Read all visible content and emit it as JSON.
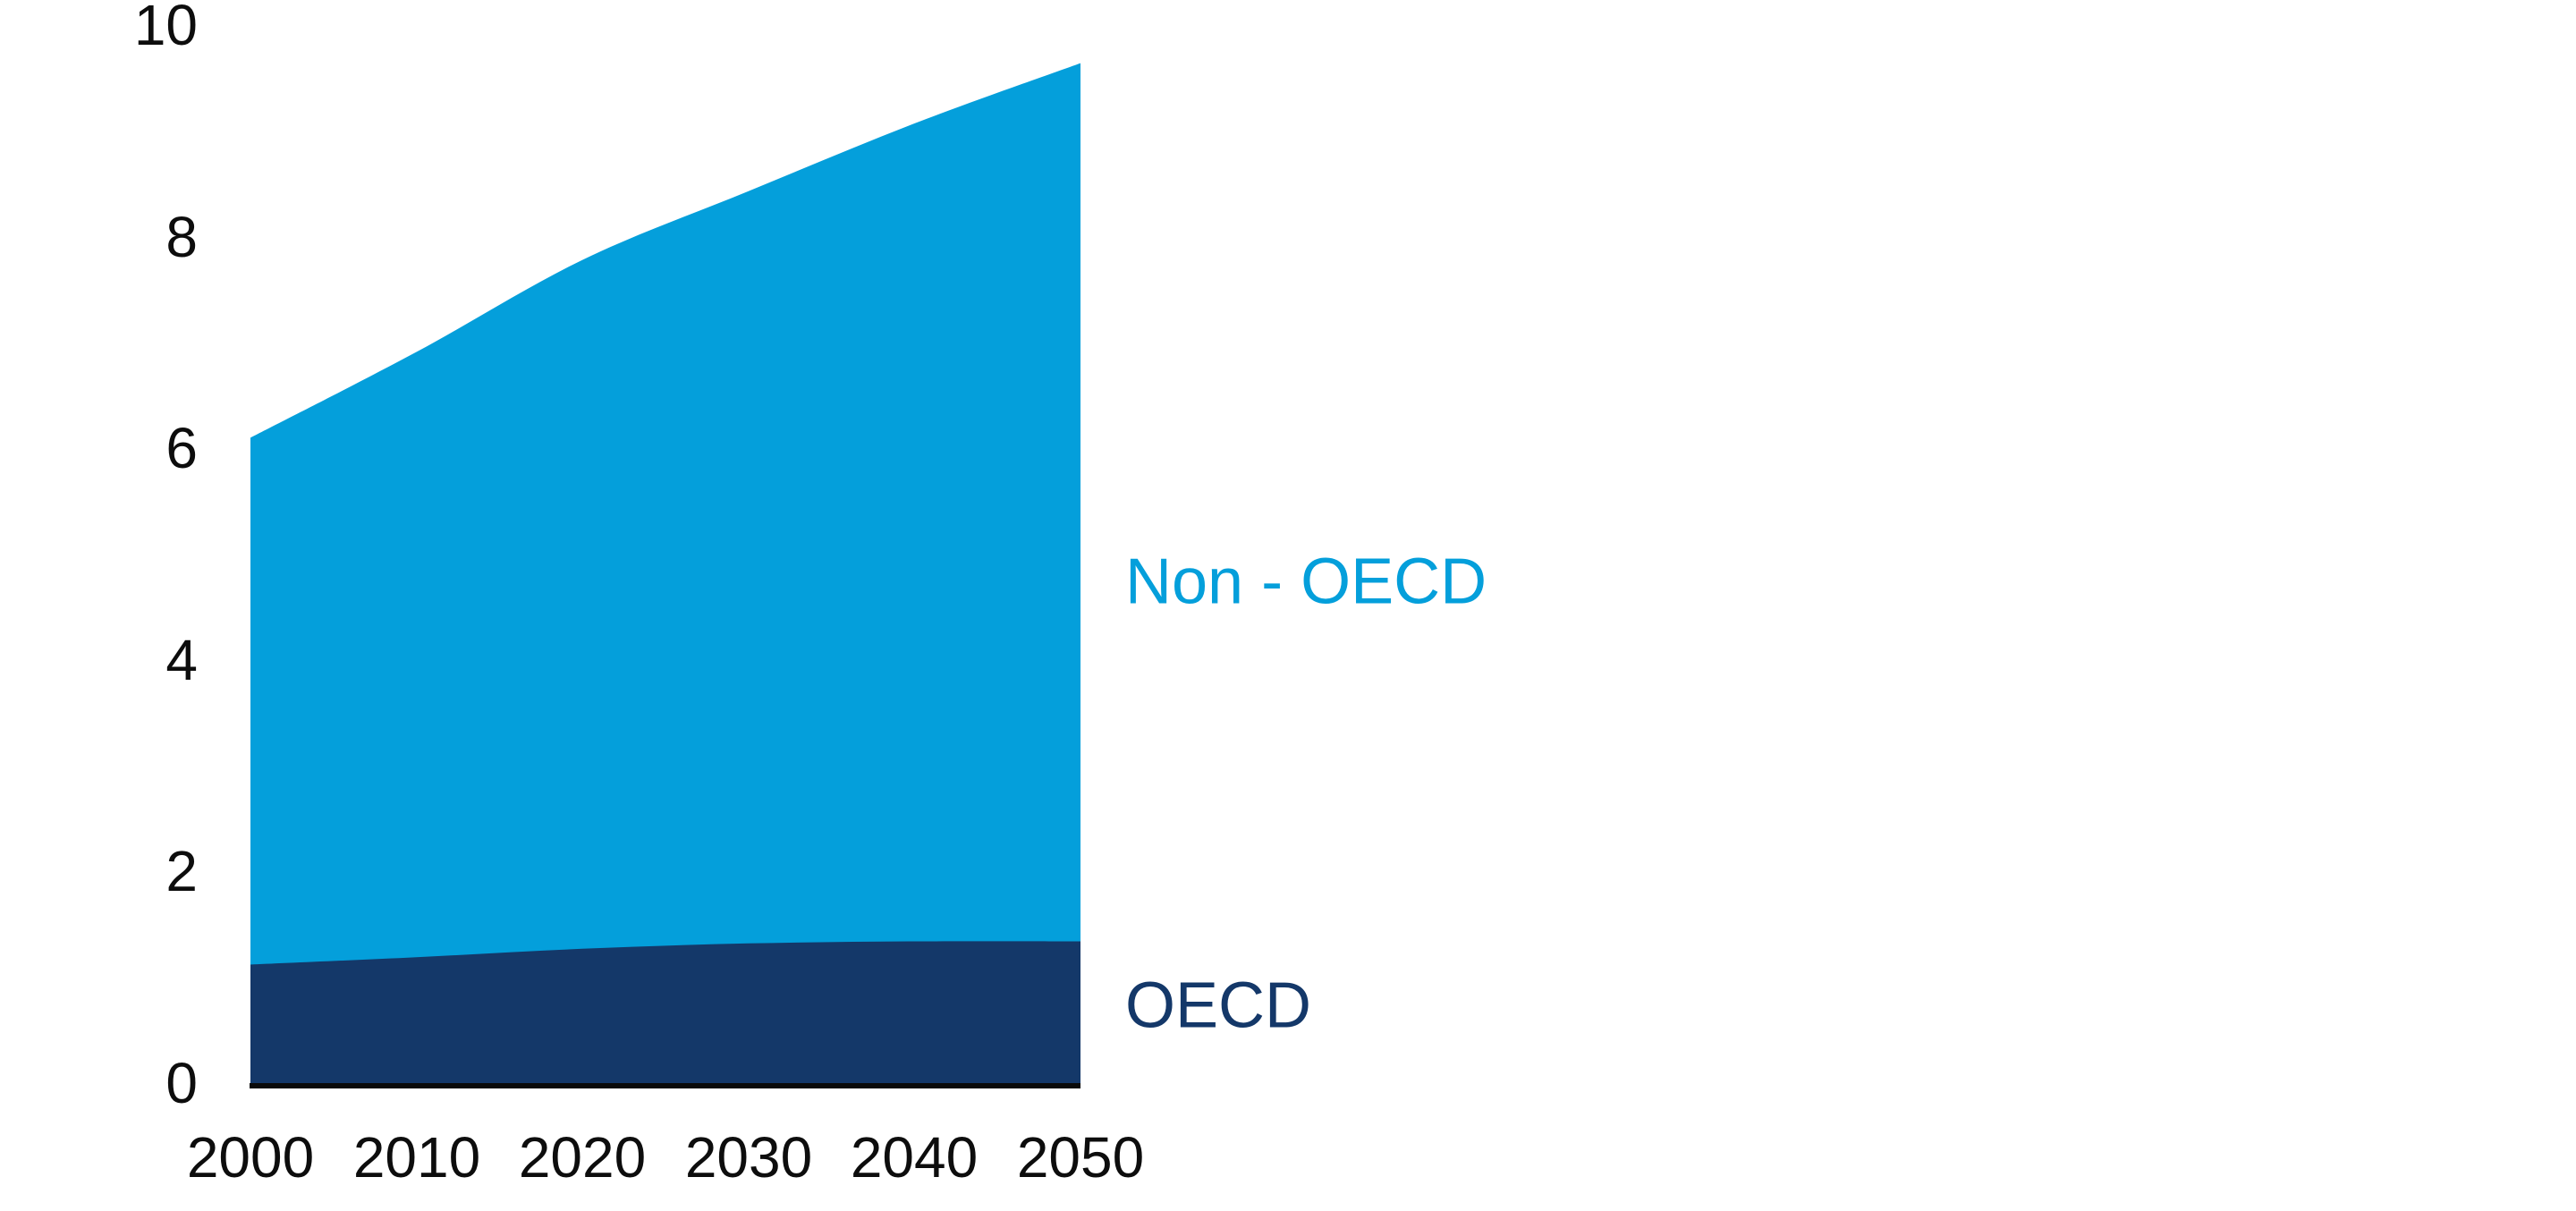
{
  "chart_data": {
    "type": "area",
    "stacked": true,
    "title": "",
    "xlabel": "",
    "ylabel": "",
    "x": [
      2000,
      2010,
      2020,
      2030,
      2040,
      2050
    ],
    "x_ticks": [
      "2000",
      "2010",
      "2020",
      "2030",
      "2040",
      "2050"
    ],
    "y_ticks": [
      "0",
      "2",
      "4",
      "6",
      "8",
      "10"
    ],
    "ylim": [
      0,
      10
    ],
    "grid": false,
    "legend_position": "right-of-area-inline",
    "series": [
      {
        "name": "OECD",
        "color": "#143869",
        "values": [
          1.12,
          1.19,
          1.27,
          1.32,
          1.34,
          1.34
        ]
      },
      {
        "name": "Non - OECD",
        "color": "#049FDB",
        "values": [
          4.98,
          5.72,
          6.51,
          7.11,
          7.73,
          8.3
        ]
      }
    ],
    "stacked_totals": [
      6.1,
      6.91,
      7.78,
      8.43,
      9.07,
      9.64
    ],
    "axis_line_color": "#0a0a0a",
    "tick_label_color": "#0d0d0d"
  }
}
